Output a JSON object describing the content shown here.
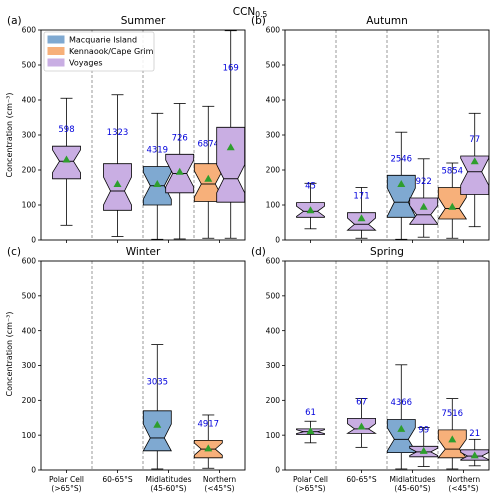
{
  "figure": {
    "title": "CCN",
    "title_subscript": "0.5",
    "y_axis_label": "Concentration (cm⁻³)",
    "colors": {
      "macquarie": "#7fa9d1",
      "kennaook": "#f7b07a",
      "voyages": "#c9aee3",
      "mean_marker": "#2e9e2e",
      "count_text": "#0000dd"
    }
  },
  "legend": [
    {
      "key": "macquarie",
      "label": "Macquarie Island",
      "color": "#7fa9d1"
    },
    {
      "key": "kennaook",
      "label": "Kennaook/Cape Grim",
      "color": "#f7b07a"
    },
    {
      "key": "voyages",
      "label": "Voyages",
      "color": "#c9aee3"
    }
  ],
  "x_categories": [
    {
      "line1": "Polar Cell",
      "line2": "(>65°S)"
    },
    {
      "line1": "60-65°S",
      "line2": ""
    },
    {
      "line1": "Midlatitudes",
      "line2": "(45-60°S)"
    },
    {
      "line1": "Northern",
      "line2": "(<45°S)"
    }
  ],
  "chart_data": [
    {
      "type": "box",
      "panel": "(a)",
      "title": "Summer",
      "ylim": [
        0,
        600
      ],
      "yticks": [
        0,
        100,
        200,
        300,
        400,
        500,
        600
      ],
      "boxes": [
        {
          "category": "Polar Cell (>65°S)",
          "source": "Voyages",
          "color_key": "voyages",
          "pos": 1.0,
          "n": "598",
          "q1": 175,
          "median": 225,
          "q3": 268,
          "whisker_low": 42,
          "whisker_high": 405,
          "mean": 230
        },
        {
          "category": "60-65°S",
          "source": "Voyages",
          "color_key": "voyages",
          "pos": 2.0,
          "n": "1323",
          "q1": 85,
          "median": 140,
          "q3": 218,
          "whisker_low": 10,
          "whisker_high": 415,
          "mean": 160
        },
        {
          "category": "Midlatitudes (45-60°S)",
          "source": "Macquarie Island",
          "color_key": "macquarie",
          "pos": 2.78,
          "n": "4319",
          "q1": 100,
          "median": 155,
          "q3": 210,
          "whisker_low": 2,
          "whisker_high": 362,
          "mean": 160
        },
        {
          "category": "Midlatitudes (45-60°S)",
          "source": "Voyages",
          "color_key": "voyages",
          "pos": 3.22,
          "n": "726",
          "q1": 135,
          "median": 190,
          "q3": 245,
          "whisker_low": 3,
          "whisker_high": 390,
          "mean": 195
        },
        {
          "category": "Northern (<45°S)",
          "source": "Kennaook/Cape Grim",
          "color_key": "kennaook",
          "pos": 3.78,
          "n": "6874",
          "q1": 110,
          "median": 160,
          "q3": 218,
          "whisker_low": 5,
          "whisker_high": 382,
          "mean": 175
        },
        {
          "category": "Northern (<45°S)",
          "source": "Voyages",
          "color_key": "voyages",
          "pos": 4.22,
          "n": "169",
          "q1": 108,
          "median": 175,
          "q3": 322,
          "whisker_low": 5,
          "whisker_high": 598,
          "mean": 265
        }
      ]
    },
    {
      "type": "box",
      "panel": "(b)",
      "title": "Autumn",
      "ylim": [
        0,
        600
      ],
      "yticks": [
        0,
        100,
        200,
        300,
        400,
        500,
        600
      ],
      "boxes": [
        {
          "category": "Polar Cell (>65°S)",
          "source": "Voyages",
          "color_key": "voyages",
          "pos": 1.0,
          "n": "45",
          "q1": 65,
          "median": 82,
          "q3": 107,
          "whisker_low": 32,
          "whisker_high": 162,
          "mean": 85
        },
        {
          "category": "60-65°S",
          "source": "Voyages",
          "color_key": "voyages",
          "pos": 2.0,
          "n": "171",
          "q1": 28,
          "median": 45,
          "q3": 78,
          "whisker_low": 5,
          "whisker_high": 150,
          "mean": 62
        },
        {
          "category": "Midlatitudes (45-60°S)",
          "source": "Macquarie Island",
          "color_key": "macquarie",
          "pos": 2.78,
          "n": "2546",
          "q1": 65,
          "median": 108,
          "q3": 185,
          "whisker_low": 2,
          "whisker_high": 308,
          "mean": 160
        },
        {
          "category": "Midlatitudes (45-60°S)",
          "source": "Voyages",
          "color_key": "voyages",
          "pos": 3.22,
          "n": "922",
          "q1": 45,
          "median": 72,
          "q3": 120,
          "whisker_low": 8,
          "whisker_high": 232,
          "mean": 95
        },
        {
          "category": "Northern (<45°S)",
          "source": "Kennaook/Cape Grim",
          "color_key": "kennaook",
          "pos": 3.78,
          "n": "5854",
          "q1": 60,
          "median": 90,
          "q3": 150,
          "whisker_low": 5,
          "whisker_high": 220,
          "mean": 95
        },
        {
          "category": "Northern (<45°S)",
          "source": "Voyages",
          "color_key": "voyages",
          "pos": 4.22,
          "n": "77",
          "q1": 130,
          "median": 195,
          "q3": 240,
          "whisker_low": 38,
          "whisker_high": 362,
          "mean": 225
        }
      ]
    },
    {
      "type": "box",
      "panel": "(c)",
      "title": "Winter",
      "ylim": [
        0,
        600
      ],
      "yticks": [
        0,
        100,
        200,
        300,
        400,
        500,
        600
      ],
      "boxes": [
        {
          "category": "Midlatitudes (45-60°S)",
          "source": "Macquarie Island",
          "color_key": "macquarie",
          "pos": 2.78,
          "n": "3035",
          "q1": 55,
          "median": 92,
          "q3": 170,
          "whisker_low": 3,
          "whisker_high": 360,
          "mean": 130
        },
        {
          "category": "Northern (<45°S)",
          "source": "Kennaook/Cape Grim",
          "color_key": "kennaook",
          "pos": 3.78,
          "n": "4917",
          "q1": 35,
          "median": 60,
          "q3": 85,
          "whisker_low": 5,
          "whisker_high": 158,
          "mean": 62
        }
      ]
    },
    {
      "type": "box",
      "panel": "(d)",
      "title": "Spring",
      "ylim": [
        0,
        600
      ],
      "yticks": [
        0,
        100,
        200,
        300,
        400,
        500,
        600
      ],
      "boxes": [
        {
          "category": "Polar Cell (>65°S)",
          "source": "Voyages",
          "color_key": "voyages",
          "pos": 1.0,
          "n": "61",
          "q1": 102,
          "median": 110,
          "q3": 118,
          "whisker_low": 78,
          "whisker_high": 140,
          "mean": 112
        },
        {
          "category": "60-65°S",
          "source": "Voyages",
          "color_key": "voyages",
          "pos": 2.0,
          "n": "67",
          "q1": 105,
          "median": 118,
          "q3": 148,
          "whisker_low": 65,
          "whisker_high": 205,
          "mean": 125
        },
        {
          "category": "Midlatitudes (45-60°S)",
          "source": "Macquarie Island",
          "color_key": "macquarie",
          "pos": 2.78,
          "n": "4366",
          "q1": 50,
          "median": 88,
          "q3": 145,
          "whisker_low": 3,
          "whisker_high": 302,
          "mean": 118
        },
        {
          "category": "Midlatitudes (45-60°S)",
          "source": "Voyages",
          "color_key": "voyages",
          "pos": 3.22,
          "n": "99",
          "q1": 38,
          "median": 52,
          "q3": 68,
          "whisker_low": 10,
          "whisker_high": 122,
          "mean": 55
        },
        {
          "category": "Northern (<45°S)",
          "source": "Kennaook/Cape Grim",
          "color_key": "kennaook",
          "pos": 3.78,
          "n": "7516",
          "q1": 35,
          "median": 60,
          "q3": 115,
          "whisker_low": 3,
          "whisker_high": 205,
          "mean": 88
        },
        {
          "category": "Northern (<45°S)",
          "source": "Voyages",
          "color_key": "voyages",
          "pos": 4.22,
          "n": "21",
          "q1": 28,
          "median": 40,
          "q3": 58,
          "whisker_low": 12,
          "whisker_high": 88,
          "mean": 42
        }
      ]
    }
  ]
}
